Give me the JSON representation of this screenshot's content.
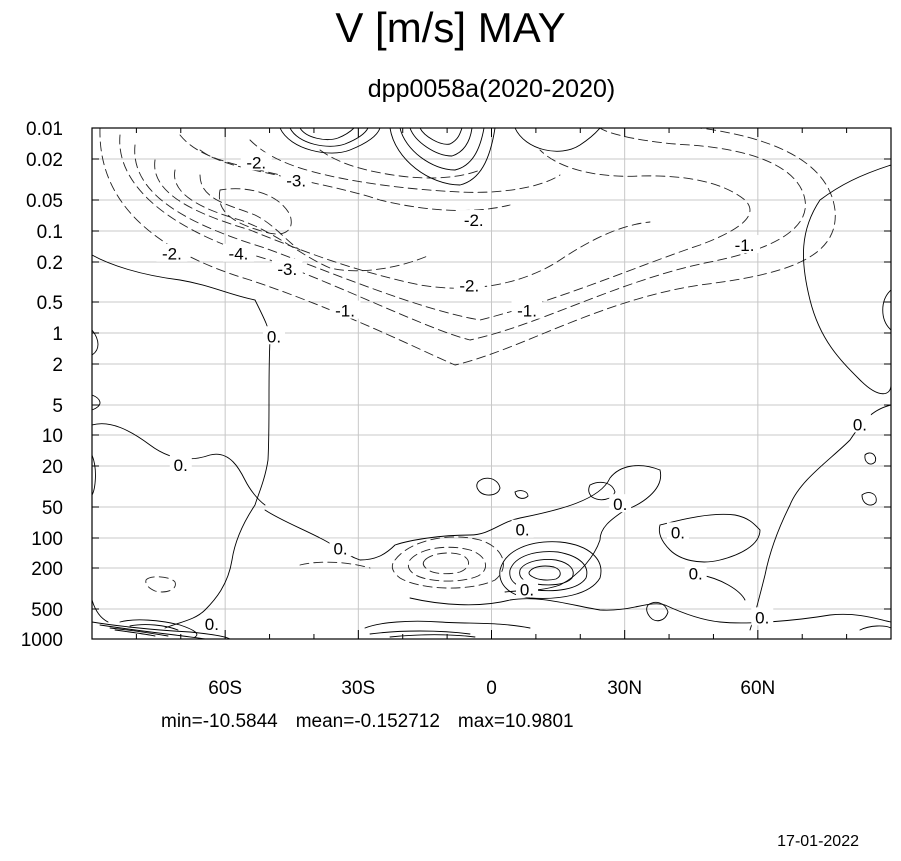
{
  "header": {
    "title": "V [m/s] MAY",
    "subtitle": "dpp0058a(2020-2020)"
  },
  "stats": {
    "min": "min=-10.5844",
    "mean": "mean=-0.152712",
    "max": "max=10.9801"
  },
  "footer": {
    "date": "17-01-2022"
  },
  "chart_data": {
    "type": "contour",
    "title": "V [m/s] MAY",
    "subtitle": "dpp0058a(2020-2020)",
    "xlabel": "",
    "ylabel": "",
    "x_axis": {
      "range": [
        -90,
        90
      ],
      "units": "degrees latitude",
      "tick_values": [
        -60,
        -30,
        0,
        30,
        60
      ],
      "tick_labels": [
        "60S",
        "30S",
        "0",
        "30N",
        "60N"
      ]
    },
    "y_axis": {
      "scale": "log",
      "inverted": true,
      "range": [
        1000,
        0.01
      ],
      "tick_values": [
        0.01,
        0.02,
        0.05,
        0.1,
        0.2,
        0.5,
        1,
        2,
        5,
        10,
        20,
        50,
        100,
        200,
        500,
        1000
      ],
      "tick_labels": [
        "0.01",
        "0.02",
        "0.05",
        "0.1",
        "0.2",
        "0.5",
        "1",
        "2",
        "5",
        "10",
        "20",
        "50",
        "100",
        "200",
        "500",
        "1000"
      ]
    },
    "grid": true,
    "negative_contours": "dashed",
    "positive_contours": "solid",
    "contour_labels": [
      {
        "text": "-2.",
        "lat": -53,
        "p": 0.022
      },
      {
        "text": "-3.",
        "lat": -44,
        "p": 0.033
      },
      {
        "text": "-2.",
        "lat": -4,
        "p": 0.08
      },
      {
        "text": "-2.",
        "lat": -72,
        "p": 0.17
      },
      {
        "text": "-4.",
        "lat": -57,
        "p": 0.17
      },
      {
        "text": "-3.",
        "lat": -46,
        "p": 0.24
      },
      {
        "text": "-2.",
        "lat": -5,
        "p": 0.35
      },
      {
        "text": "-1.",
        "lat": 57,
        "p": 0.14
      },
      {
        "text": "-1.",
        "lat": -33,
        "p": 0.62
      },
      {
        "text": "-1.",
        "lat": 8,
        "p": 0.62
      },
      {
        "text": "0.",
        "lat": -49,
        "p": 1.1
      },
      {
        "text": "0.",
        "lat": -70,
        "p": 20
      },
      {
        "text": "0.",
        "lat": 83,
        "p": 8
      },
      {
        "text": "0.",
        "lat": 29,
        "p": 48
      },
      {
        "text": "0.",
        "lat": 7,
        "p": 85
      },
      {
        "text": "0.",
        "lat": 42,
        "p": 90
      },
      {
        "text": "0.",
        "lat": -34,
        "p": 130
      },
      {
        "text": "0.",
        "lat": 46,
        "p": 230
      },
      {
        "text": "0.",
        "lat": 8,
        "p": 330
      },
      {
        "text": "0.",
        "lat": 61,
        "p": 620
      },
      {
        "text": "0.",
        "lat": -63,
        "p": 720
      }
    ]
  }
}
